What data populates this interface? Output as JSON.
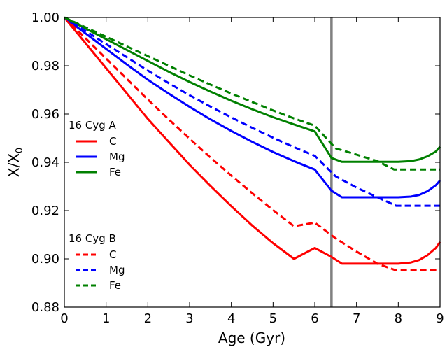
{
  "chart_data": {
    "type": "line",
    "xlabel": "Age (Gyr)",
    "ylabel": "X/X",
    "ylabel_sub": "0",
    "xlim": [
      0,
      9
    ],
    "ylim": [
      0.88,
      1.0
    ],
    "xticks": [
      0,
      1,
      2,
      3,
      4,
      5,
      6,
      7,
      8,
      9
    ],
    "xtick_labels": [
      "0",
      "1",
      "2",
      "3",
      "4",
      "5",
      "6",
      "7",
      "8",
      "9"
    ],
    "yticks": [
      0.88,
      0.9,
      0.92,
      0.94,
      0.96,
      0.98,
      1.0
    ],
    "ytick_labels": [
      "0.88",
      "0.90",
      "0.92",
      "0.94",
      "0.96",
      "0.98",
      "1.00"
    ],
    "vline": {
      "x": 6.4,
      "color": "#808080"
    },
    "grid": false,
    "legend_groups": [
      {
        "title": "16 Cyg A",
        "style": "solid",
        "placement": "center-left"
      },
      {
        "title": "16 Cyg B",
        "style": "dashed",
        "placement": "lower-left"
      }
    ],
    "series": [
      {
        "name": "C",
        "group": "16 Cyg A",
        "style": "solid",
        "color": "#ff0000",
        "x": [
          0,
          0.5,
          1,
          1.5,
          2,
          2.5,
          3,
          3.5,
          4,
          4.5,
          5,
          5.5,
          6,
          6.4,
          6.65,
          7,
          7.5,
          8,
          8.3,
          8.5,
          8.7,
          8.9,
          9
        ],
        "y": [
          1.0,
          0.9895,
          0.979,
          0.9685,
          0.958,
          0.9485,
          0.939,
          0.9302,
          0.9218,
          0.9138,
          0.9065,
          0.9,
          0.9045,
          0.9008,
          0.898,
          0.898,
          0.898,
          0.898,
          0.8985,
          0.8995,
          0.9015,
          0.9045,
          0.907
        ]
      },
      {
        "name": "Mg",
        "group": "16 Cyg A",
        "style": "solid",
        "color": "#0000ff",
        "x": [
          0,
          0.5,
          1,
          1.5,
          2,
          2.5,
          3,
          3.5,
          4,
          4.5,
          5,
          5.5,
          6,
          6.4,
          6.65,
          7,
          7.5,
          8,
          8.3,
          8.5,
          8.7,
          8.9,
          9
        ],
        "y": [
          1.0,
          0.9935,
          0.987,
          0.9805,
          0.9742,
          0.9685,
          0.963,
          0.9578,
          0.953,
          0.9485,
          0.9443,
          0.9405,
          0.937,
          0.9282,
          0.9255,
          0.9255,
          0.9255,
          0.9255,
          0.9258,
          0.9265,
          0.928,
          0.9305,
          0.9325
        ]
      },
      {
        "name": "Fe",
        "group": "16 Cyg A",
        "style": "solid",
        "color": "#008000",
        "x": [
          0,
          0.5,
          1,
          1.5,
          2,
          2.5,
          3,
          3.5,
          4,
          4.5,
          5,
          5.5,
          6,
          6.4,
          6.65,
          7,
          7.5,
          8,
          8.3,
          8.5,
          8.7,
          8.9,
          9
        ],
        "y": [
          1.0,
          0.9955,
          0.991,
          0.9865,
          0.982,
          0.9775,
          0.9733,
          0.9693,
          0.9655,
          0.962,
          0.9587,
          0.9557,
          0.9528,
          0.9418,
          0.9402,
          0.9402,
          0.9402,
          0.9402,
          0.9405,
          0.9412,
          0.9425,
          0.9445,
          0.9465
        ]
      },
      {
        "name": "C",
        "group": "16 Cyg B",
        "style": "dashed",
        "color": "#ff0000",
        "x": [
          0,
          0.5,
          1,
          1.5,
          2,
          2.5,
          3,
          3.5,
          4,
          4.5,
          5,
          5.5,
          6,
          6.5,
          7,
          7.5,
          7.9,
          8.5,
          9
        ],
        "y": [
          1.0,
          0.9915,
          0.983,
          0.9745,
          0.966,
          0.9578,
          0.9498,
          0.942,
          0.9345,
          0.9272,
          0.9202,
          0.9135,
          0.915,
          0.9085,
          0.903,
          0.898,
          0.8955,
          0.8955,
          0.8955
        ]
      },
      {
        "name": "Mg",
        "group": "16 Cyg B",
        "style": "dashed",
        "color": "#0000ff",
        "x": [
          0,
          0.5,
          1,
          1.5,
          2,
          2.5,
          3,
          3.5,
          4,
          4.5,
          5,
          5.5,
          6,
          6.5,
          7,
          7.5,
          7.95,
          8.5,
          9
        ],
        "y": [
          1.0,
          0.9945,
          0.989,
          0.9835,
          0.978,
          0.9728,
          0.9678,
          0.9631,
          0.9586,
          0.9543,
          0.9502,
          0.9463,
          0.9427,
          0.9342,
          0.9295,
          0.9255,
          0.922,
          0.922,
          0.922
        ]
      },
      {
        "name": "Fe",
        "group": "16 Cyg B",
        "style": "dashed",
        "color": "#008000",
        "x": [
          0,
          0.5,
          1,
          1.5,
          2,
          2.5,
          3,
          3.5,
          4,
          4.5,
          5,
          5.5,
          6,
          6.5,
          7,
          7.5,
          7.9,
          8.5,
          9
        ],
        "y": [
          1.0,
          0.996,
          0.992,
          0.988,
          0.984,
          0.98,
          0.976,
          0.9722,
          0.9685,
          0.965,
          0.9615,
          0.9582,
          0.9552,
          0.9458,
          0.9432,
          0.9405,
          0.937,
          0.937,
          0.937
        ]
      }
    ]
  }
}
